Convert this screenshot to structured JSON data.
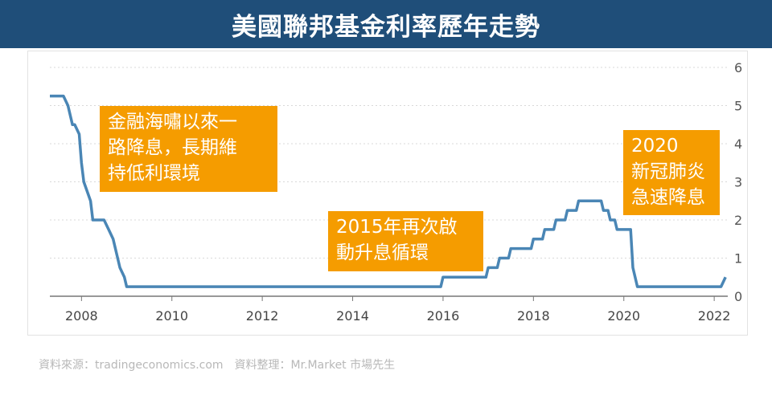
{
  "title": "美國聯邦基金利率歷年走勢",
  "source": "資料來源：tradingeconomics.com　資料整理：Mr.Market 市場先生",
  "colors": {
    "title_bg": "#1f4e79",
    "line": "#4a86b5",
    "callout_bg": "#f59c00",
    "axis": "#777777",
    "grid": "#d8d8d8"
  },
  "annotations": [
    {
      "text": "金融海嘯以來一\n路降息，長期維\n持低利環境"
    },
    {
      "text": "2015年再次啟\n動升息循環"
    },
    {
      "text": "2020\n新冠肺炎\n急速降息"
    }
  ],
  "chart_data": {
    "type": "line",
    "title": "美國聯邦基金利率歷年走勢",
    "xlabel": "",
    "ylabel": "",
    "xlim": [
      2007.3,
      2022.3
    ],
    "ylim": [
      0,
      6
    ],
    "x_ticks": [
      "2008",
      "2010",
      "2012",
      "2014",
      "2016",
      "2018",
      "2020",
      "2022"
    ],
    "y_ticks": [
      "0",
      "1",
      "2",
      "3",
      "4",
      "5",
      "6"
    ],
    "y_axis_side": "right",
    "grid": "horizontal dotted",
    "legend": "none",
    "series": [
      {
        "x": [
          2007.3,
          2007.6,
          2007.7,
          2007.8,
          2007.85,
          2007.95,
          2008.0,
          2008.05,
          2008.2,
          2008.25,
          2008.5,
          2008.6,
          2008.7,
          2008.8,
          2008.85,
          2008.95,
          2009.0,
          2015.95,
          2016.0,
          2016.95,
          2017.0,
          2017.2,
          2017.25,
          2017.45,
          2017.5,
          2017.95,
          2018.0,
          2018.2,
          2018.25,
          2018.45,
          2018.5,
          2018.7,
          2018.75,
          2018.95,
          2019.0,
          2019.5,
          2019.55,
          2019.65,
          2019.7,
          2019.8,
          2019.85,
          2020.15,
          2020.2,
          2020.3,
          2022.15,
          2022.25
        ],
        "values": [
          5.25,
          5.25,
          5.0,
          4.5,
          4.5,
          4.25,
          3.5,
          3.0,
          2.5,
          2.0,
          2.0,
          1.75,
          1.5,
          1.0,
          0.75,
          0.5,
          0.25,
          0.25,
          0.5,
          0.5,
          0.75,
          0.75,
          1.0,
          1.0,
          1.25,
          1.25,
          1.5,
          1.5,
          1.75,
          1.75,
          2.0,
          2.0,
          2.25,
          2.25,
          2.5,
          2.5,
          2.25,
          2.25,
          2.0,
          2.0,
          1.75,
          1.75,
          0.75,
          0.25,
          0.25,
          0.5
        ]
      }
    ]
  }
}
